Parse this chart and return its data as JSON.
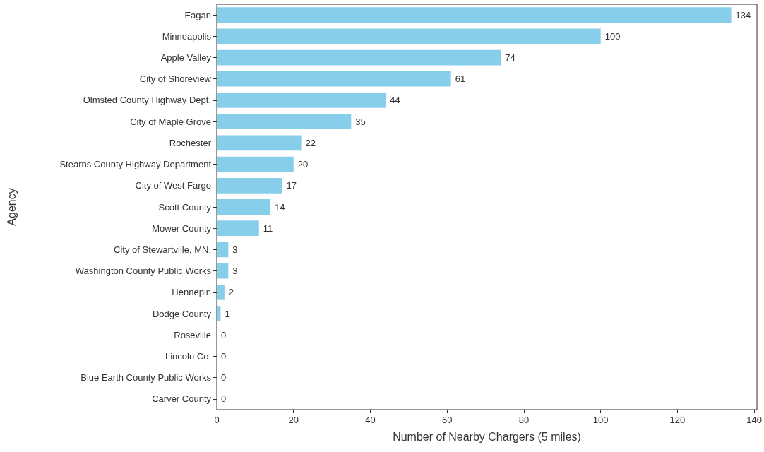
{
  "chart_data": {
    "type": "bar",
    "orientation": "horizontal",
    "xlabel": "Number of Nearby Chargers (5 miles)",
    "ylabel": "Agency",
    "categories": [
      "Eagan",
      "Minneapolis",
      "Apple Valley",
      "City of Shoreview",
      "Olmsted County Highway Dept.",
      "City of Maple Grove",
      "Rochester",
      "Stearns County Highway Department",
      "City of West Fargo",
      "Scott County",
      "Mower County",
      "City of Stewartville, MN.",
      "Washington County Public Works",
      "Hennepin",
      "Dodge County",
      "Roseville",
      "Lincoln Co.",
      "Blue Earth County Public Works",
      "Carver County"
    ],
    "values": [
      134,
      100,
      74,
      61,
      44,
      35,
      22,
      20,
      17,
      14,
      11,
      3,
      3,
      2,
      1,
      0,
      0,
      0,
      0
    ],
    "color": "#87ceeb",
    "xlim": [
      0,
      140.7
    ],
    "xticks": [
      0,
      20,
      40,
      60,
      80,
      100,
      120,
      140
    ],
    "data_labels": true
  }
}
